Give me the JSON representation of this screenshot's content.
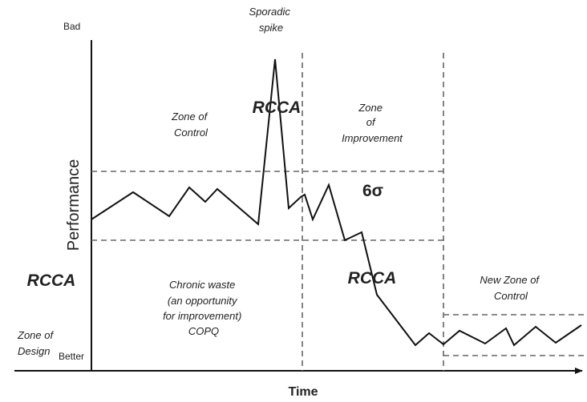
{
  "accent_color": "#7b4a9e",
  "axis": {
    "y_label": "Performance",
    "x_label": "Time",
    "y_top": "Bad",
    "y_bottom": "Better"
  },
  "zones": {
    "control": [
      "Zone of",
      "Control"
    ],
    "improvement": [
      "Zone",
      "of",
      "Improvement"
    ],
    "new_control": [
      "New Zone of",
      "Control"
    ],
    "design": [
      "Zone of",
      "Design"
    ]
  },
  "annotations": {
    "spike": [
      "Sporadic",
      "spike"
    ],
    "chronic": [
      "Chronic waste",
      "(an opportunity",
      "for improvement)",
      "COPQ"
    ],
    "rcca_spike": "RCCA",
    "rcca_left": "RCCA",
    "rcca_improvement": "RCCA",
    "six_sigma": "6σ"
  }
}
